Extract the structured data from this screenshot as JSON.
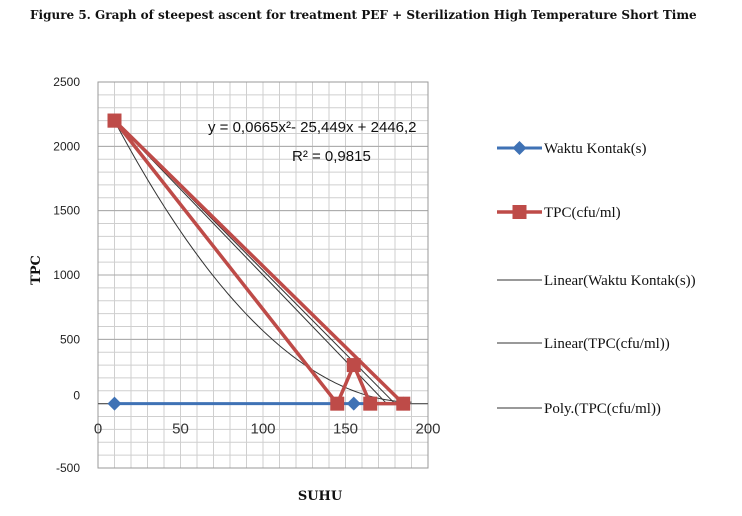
{
  "figure_title": "Figure 5. Graph of steepest ascent for treatment PEF + Sterilization High Temperature Short Time",
  "chart_data": {
    "type": "scatter",
    "xlabel": "SUHU",
    "ylabel": "TPC",
    "xlim": [
      0,
      200
    ],
    "ylim": [
      -500,
      2500
    ],
    "x_ticks": [
      0,
      50,
      100,
      150,
      200
    ],
    "y_ticks": [
      2500,
      2000,
      1500,
      1000,
      500,
      0,
      -500
    ],
    "grid": true,
    "legend_position": "right",
    "series": [
      {
        "name": "Waktu Kontak(s)",
        "color": "#3f72b5",
        "marker": "diamond",
        "x": [
          10,
          155,
          185
        ],
        "y": [
          0,
          0,
          0
        ]
      },
      {
        "name": "TPC(cfu/ml)",
        "color": "#be4b48",
        "marker": "square",
        "x": [
          10,
          145,
          155,
          165,
          185,
          10
        ],
        "y": [
          2200,
          0,
          300,
          0,
          0,
          2200
        ]
      }
    ],
    "trendlines": [
      {
        "name": "Linear(Waktu Kontak(s))",
        "kind": "linear",
        "color": "#333333",
        "x": [
          10,
          180
        ],
        "y": [
          2200,
          0
        ]
      },
      {
        "name": "Linear(TPC(cfu/ml))",
        "kind": "linear",
        "color": "#333333",
        "x": [
          10,
          175
        ],
        "y": [
          2200,
          0
        ]
      },
      {
        "name": "Poly.(TPC(cfu/ml))",
        "kind": "polynomial",
        "color": "#333333",
        "coefficients": [
          0.0665,
          -25.449,
          2446.2
        ],
        "x_range": [
          10,
          190
        ]
      }
    ],
    "annotation": {
      "equation": "y = 0,0665x²- 25,449x + 2446,2",
      "r_squared": "R² = 0,9815"
    }
  }
}
